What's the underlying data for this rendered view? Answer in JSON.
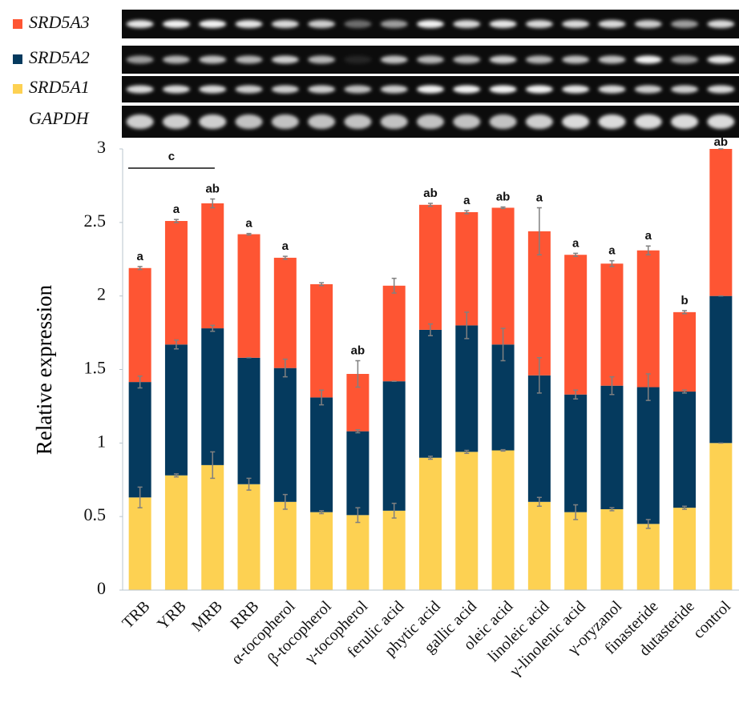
{
  "chart_data": {
    "type": "bar",
    "stacked": true,
    "y_label": "Relative expression",
    "categories": [
      "TRB",
      "YRB",
      "MRB",
      "RRB",
      "α-tocopherol",
      "β-tocopherol",
      "γ-tocopherol",
      "ferulic acid",
      "phytic acid",
      "gallic acid",
      "oleic acid",
      "linoleic acid",
      "γ-linolenic acid",
      "γ-oryzanol",
      "finasteride",
      "dutasteride",
      "control"
    ],
    "series": [
      {
        "name": "SRD5A1",
        "color": "#fdd152",
        "values": [
          0.63,
          0.78,
          0.85,
          0.72,
          0.6,
          0.53,
          0.51,
          0.54,
          0.9,
          0.94,
          0.95,
          0.6,
          0.53,
          0.55,
          0.45,
          0.56,
          1
        ],
        "errors": [
          0.07,
          0.01,
          0.09,
          0.04,
          0.05,
          0.01,
          0.05,
          0.05,
          0.01,
          0.01,
          0.005,
          0.03,
          0.05,
          0.01,
          0.03,
          0.01,
          0
        ]
      },
      {
        "name": "SRD5A2",
        "color": "#053a5e",
        "values": [
          0.785,
          0.89,
          0.93,
          0.86,
          0.91,
          0.78,
          0.57,
          0.88,
          0.87,
          0.86,
          0.72,
          0.86,
          0.8,
          0.84,
          0.93,
          0.79,
          1
        ],
        "errors": [
          0.04,
          0.03,
          0.02,
          0,
          0.06,
          0.05,
          0.01,
          0,
          0.04,
          0.09,
          0.11,
          0.12,
          0.03,
          0.06,
          0.09,
          0.01,
          0
        ]
      },
      {
        "name": "SRD5A3",
        "color": "#fe5533",
        "values": [
          0.775,
          0.84,
          0.85,
          0.84,
          0.75,
          0.77,
          0.39,
          0.65,
          0.85,
          0.77,
          0.93,
          0.98,
          0.95,
          0.83,
          0.93,
          0.54,
          1
        ],
        "errors": [
          0.01,
          0.01,
          0.03,
          0.005,
          0.01,
          0.01,
          0.09,
          0.05,
          0.01,
          0.01,
          0.005,
          0.16,
          0.01,
          0.02,
          0.03,
          0.01,
          0
        ]
      }
    ],
    "significance": [
      "a",
      "a",
      "ab",
      "a",
      "a",
      null,
      "ab",
      null,
      "ab",
      "a",
      "ab",
      "a",
      "a",
      "a",
      "a",
      "b",
      "ab"
    ],
    "group_annotation": "c",
    "gel_reference": "GAPDH",
    "ylim": [
      0,
      3
    ],
    "yticks": [
      0,
      {
        "value": 0.5,
        "label": "0.5"
      },
      1,
      {
        "value": 1.5,
        "label": "1.5"
      },
      2,
      {
        "value": 2.5,
        "label": "2.5"
      },
      3
    ]
  }
}
